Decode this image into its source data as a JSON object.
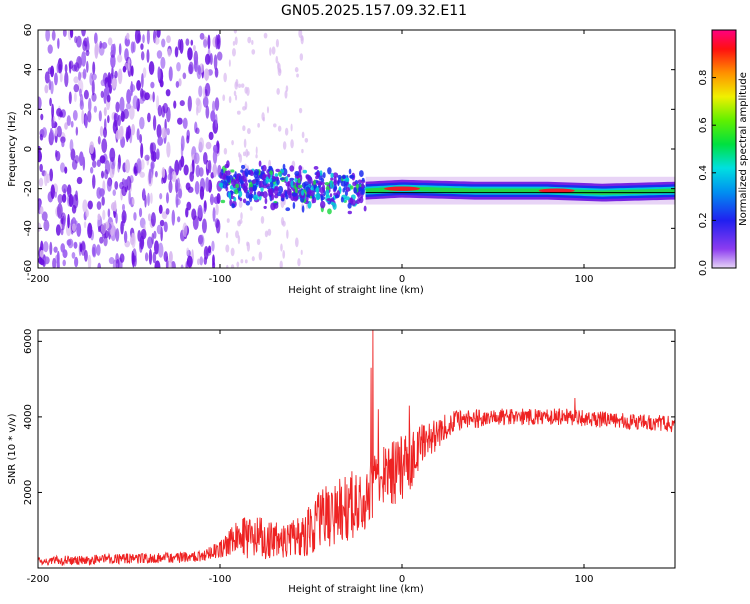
{
  "title": "GN05.2025.157.09.32.E11",
  "colors": {
    "line": "#ee2222",
    "axis": "#000000",
    "faint": "#d8b8f0",
    "light": "#9a5cf0",
    "medium": "#6a10e0",
    "ridge_blue": "#1a2cf0",
    "ridge_cyan": "#00c8d8",
    "ridge_green": "#22d848",
    "ridge_red": "#ee1c28"
  },
  "chart_data": [
    {
      "type": "heatmap",
      "xlabel": "Height of straight line (km)",
      "ylabel": "Frequency (Hz)",
      "xlim": [
        -200,
        150
      ],
      "ylim": [
        -60,
        60
      ],
      "x_ticks": [
        -200,
        -100,
        0,
        100
      ],
      "y_ticks": [
        -60,
        -40,
        -20,
        0,
        20,
        40,
        60
      ],
      "reference_line_hz": -22,
      "regions": [
        {
          "name": "broadband noise",
          "x": [
            -200,
            -100
          ],
          "y": [
            -60,
            60
          ],
          "level": "medium"
        },
        {
          "name": "sparse noise",
          "x": [
            -100,
            -50
          ],
          "y": [
            -60,
            60
          ],
          "level": "faint"
        },
        {
          "name": "scattered band",
          "x": [
            -100,
            -20
          ],
          "y": [
            -32,
            -8
          ],
          "level": "high"
        },
        {
          "name": "signal ridge",
          "x": [
            -20,
            150
          ],
          "y": [
            -24,
            -18
          ],
          "level": "high"
        }
      ],
      "ridge": [
        {
          "x": -100,
          "y": -18
        },
        {
          "x": -60,
          "y": -19
        },
        {
          "x": -40,
          "y": -21
        },
        {
          "x": -20,
          "y": -21
        },
        {
          "x": 0,
          "y": -20
        },
        {
          "x": 40,
          "y": -21
        },
        {
          "x": 80,
          "y": -21
        },
        {
          "x": 110,
          "y": -22
        },
        {
          "x": 150,
          "y": -21
        }
      ],
      "ridge_peaks": [
        {
          "x": 0,
          "y": -20
        },
        {
          "x": 85,
          "y": -21
        }
      ],
      "colorbar": {
        "label": "Normalized spectral amplitude",
        "range": [
          0,
          1
        ],
        "ticks": [
          0.0,
          0.2,
          0.4,
          0.6,
          0.8
        ],
        "tick_labels": [
          "0.0",
          "0.2",
          "0.4",
          "0.6",
          "0.8"
        ]
      }
    },
    {
      "type": "line",
      "xlabel": "Height of straight line (km)",
      "ylabel": "SNR (10 * v/v)",
      "xlim": [
        -200,
        150
      ],
      "ylim": [
        0,
        6300
      ],
      "x_ticks": [
        -200,
        -100,
        0,
        100
      ],
      "y_ticks": [
        2000,
        4000,
        6000
      ],
      "series": [
        {
          "envelope": [
            {
              "x": -200,
              "mean": 180,
              "spread": 120
            },
            {
              "x": -110,
              "mean": 300,
              "spread": 150
            },
            {
              "x": -100,
              "mean": 500,
              "spread": 260
            },
            {
              "x": -85,
              "mean": 900,
              "spread": 650
            },
            {
              "x": -70,
              "mean": 700,
              "spread": 500
            },
            {
              "x": -55,
              "mean": 800,
              "spread": 550
            },
            {
              "x": -45,
              "mean": 1300,
              "spread": 800
            },
            {
              "x": -30,
              "mean": 1600,
              "spread": 900
            },
            {
              "x": -20,
              "mean": 2000,
              "spread": 1000
            },
            {
              "x": -10,
              "mean": 2400,
              "spread": 900
            },
            {
              "x": 0,
              "mean": 2600,
              "spread": 900
            },
            {
              "x": 10,
              "mean": 3200,
              "spread": 650
            },
            {
              "x": 20,
              "mean": 3600,
              "spread": 400
            },
            {
              "x": 30,
              "mean": 3900,
              "spread": 280
            },
            {
              "x": 50,
              "mean": 4000,
              "spread": 220
            },
            {
              "x": 90,
              "mean": 4000,
              "spread": 220
            },
            {
              "x": 150,
              "mean": 3800,
              "spread": 220
            }
          ],
          "spikes": [
            {
              "x": -16,
              "y": 6300
            },
            {
              "x": -17,
              "y": 5300
            },
            {
              "x": -13,
              "y": 4200
            },
            {
              "x": 4,
              "y": 4300
            },
            {
              "x": 95,
              "y": 4500
            }
          ]
        }
      ]
    }
  ]
}
